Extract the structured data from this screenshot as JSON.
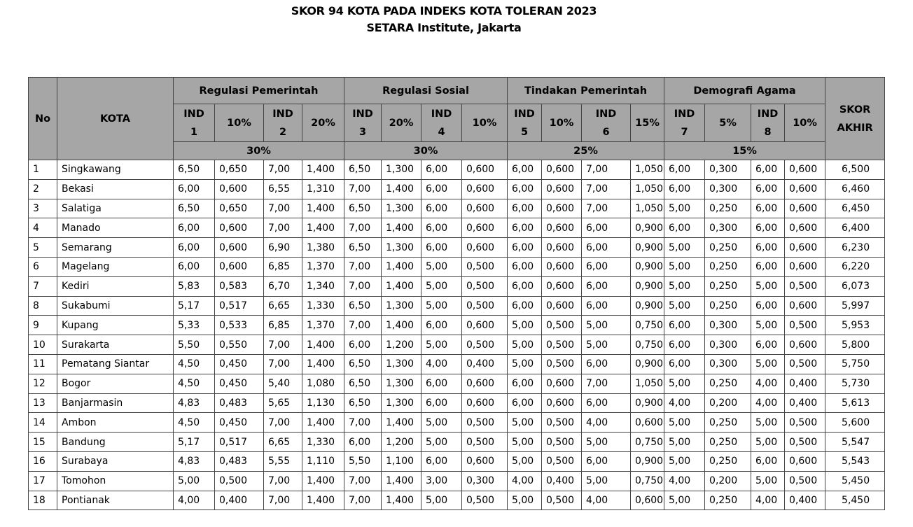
{
  "header": {
    "title": "SKOR 94 KOTA PADA INDEKS KOTA TOLERAN 2023",
    "subtitle": "SETARA Institute, Jakarta"
  },
  "table": {
    "col_no": "No",
    "col_kota": "KOTA",
    "col_skor": "SKOR AKHIR",
    "groups": [
      {
        "label": "Regulasi Pemerintah",
        "weight": "30%",
        "sub": [
          {
            "ind": "IND",
            "num": "1",
            "pct": "10%"
          },
          {
            "ind": "IND",
            "num": "2",
            "pct": "20%"
          }
        ]
      },
      {
        "label": "Regulasi Sosial",
        "weight": "30%",
        "sub": [
          {
            "ind": "IND",
            "num": "3",
            "pct": "20%"
          },
          {
            "ind": "IND",
            "num": "4",
            "pct": "10%"
          }
        ]
      },
      {
        "label": "Tindakan Pemerintah",
        "weight": "25%",
        "sub": [
          {
            "ind": "IND",
            "num": "5",
            "pct": "10%"
          },
          {
            "ind": "IND",
            "num": "6",
            "pct": "15%"
          }
        ]
      },
      {
        "label": "Demografi Agama",
        "weight": "15%",
        "sub": [
          {
            "ind": "IND",
            "num": "7",
            "pct": "5%"
          },
          {
            "ind": "IND",
            "num": "8",
            "pct": "10%"
          }
        ]
      }
    ],
    "rows": [
      [
        "1",
        "Singkawang",
        "6,50",
        "0,650",
        "7,00",
        "1,400",
        "6,50",
        "1,300",
        "6,00",
        "0,600",
        "6,00",
        "0,600",
        "7,00",
        "1,050",
        "6,00",
        "0,300",
        "6,00",
        "0,600",
        "6,500"
      ],
      [
        "2",
        "Bekasi",
        "6,00",
        "0,600",
        "6,55",
        "1,310",
        "7,00",
        "1,400",
        "6,00",
        "0,600",
        "6,00",
        "0,600",
        "7,00",
        "1,050",
        "6,00",
        "0,300",
        "6,00",
        "0,600",
        "6,460"
      ],
      [
        "3",
        "Salatiga",
        "6,50",
        "0,650",
        "7,00",
        "1,400",
        "6,50",
        "1,300",
        "6,00",
        "0,600",
        "6,00",
        "0,600",
        "7,00",
        "1,050",
        "5,00",
        "0,250",
        "6,00",
        "0,600",
        "6,450"
      ],
      [
        "4",
        "Manado",
        "6,00",
        "0,600",
        "7,00",
        "1,400",
        "7,00",
        "1,400",
        "6,00",
        "0,600",
        "6,00",
        "0,600",
        "6,00",
        "0,900",
        "6,00",
        "0,300",
        "6,00",
        "0,600",
        "6,400"
      ],
      [
        "5",
        "Semarang",
        "6,00",
        "0,600",
        "6,90",
        "1,380",
        "6,50",
        "1,300",
        "6,00",
        "0,600",
        "6,00",
        "0,600",
        "6,00",
        "0,900",
        "5,00",
        "0,250",
        "6,00",
        "0,600",
        "6,230"
      ],
      [
        "6",
        "Magelang",
        "6,00",
        "0,600",
        "6,85",
        "1,370",
        "7,00",
        "1,400",
        "5,00",
        "0,500",
        "6,00",
        "0,600",
        "6,00",
        "0,900",
        "5,00",
        "0,250",
        "6,00",
        "0,600",
        "6,220"
      ],
      [
        "7",
        "Kediri",
        "5,83",
        "0,583",
        "6,70",
        "1,340",
        "7,00",
        "1,400",
        "5,00",
        "0,500",
        "6,00",
        "0,600",
        "6,00",
        "0,900",
        "5,00",
        "0,250",
        "5,00",
        "0,500",
        "6,073"
      ],
      [
        "8",
        "Sukabumi",
        "5,17",
        "0,517",
        "6,65",
        "1,330",
        "6,50",
        "1,300",
        "5,00",
        "0,500",
        "6,00",
        "0,600",
        "6,00",
        "0,900",
        "5,00",
        "0,250",
        "6,00",
        "0,600",
        "5,997"
      ],
      [
        "9",
        "Kupang",
        "5,33",
        "0,533",
        "6,85",
        "1,370",
        "7,00",
        "1,400",
        "6,00",
        "0,600",
        "5,00",
        "0,500",
        "5,00",
        "0,750",
        "6,00",
        "0,300",
        "5,00",
        "0,500",
        "5,953"
      ],
      [
        "10",
        "Surakarta",
        "5,50",
        "0,550",
        "7,00",
        "1,400",
        "6,00",
        "1,200",
        "5,00",
        "0,500",
        "5,00",
        "0,500",
        "5,00",
        "0,750",
        "6,00",
        "0,300",
        "6,00",
        "0,600",
        "5,800"
      ],
      [
        "11",
        "Pematang Siantar",
        "4,50",
        "0,450",
        "7,00",
        "1,400",
        "6,50",
        "1,300",
        "4,00",
        "0,400",
        "5,00",
        "0,500",
        "6,00",
        "0,900",
        "6,00",
        "0,300",
        "5,00",
        "0,500",
        "5,750"
      ],
      [
        "12",
        "Bogor",
        "4,50",
        "0,450",
        "5,40",
        "1,080",
        "6,50",
        "1,300",
        "6,00",
        "0,600",
        "6,00",
        "0,600",
        "7,00",
        "1,050",
        "5,00",
        "0,250",
        "4,00",
        "0,400",
        "5,730"
      ],
      [
        "13",
        "Banjarmasin",
        "4,83",
        "0,483",
        "5,65",
        "1,130",
        "6,50",
        "1,300",
        "6,00",
        "0,600",
        "6,00",
        "0,600",
        "6,00",
        "0,900",
        "4,00",
        "0,200",
        "4,00",
        "0,400",
        "5,613"
      ],
      [
        "14",
        "Ambon",
        "4,50",
        "0,450",
        "7,00",
        "1,400",
        "7,00",
        "1,400",
        "5,00",
        "0,500",
        "5,00",
        "0,500",
        "4,00",
        "0,600",
        "5,00",
        "0,250",
        "5,00",
        "0,500",
        "5,600"
      ],
      [
        "15",
        "Bandung",
        "5,17",
        "0,517",
        "6,65",
        "1,330",
        "6,00",
        "1,200",
        "5,00",
        "0,500",
        "5,00",
        "0,500",
        "5,00",
        "0,750",
        "5,00",
        "0,250",
        "5,00",
        "0,500",
        "5,547"
      ],
      [
        "16",
        "Surabaya",
        "4,83",
        "0,483",
        "5,55",
        "1,110",
        "5,50",
        "1,100",
        "6,00",
        "0,600",
        "5,00",
        "0,500",
        "6,00",
        "0,900",
        "5,00",
        "0,250",
        "6,00",
        "0,600",
        "5,543"
      ],
      [
        "17",
        "Tomohon",
        "5,00",
        "0,500",
        "7,00",
        "1,400",
        "7,00",
        "1,400",
        "3,00",
        "0,300",
        "4,00",
        "0,400",
        "5,00",
        "0,750",
        "4,00",
        "0,200",
        "5,00",
        "0,500",
        "5,450"
      ],
      [
        "18",
        "Pontianak",
        "4,00",
        "0,400",
        "7,00",
        "1,400",
        "7,00",
        "1,400",
        "5,00",
        "0,500",
        "5,00",
        "0,500",
        "4,00",
        "0,600",
        "5,00",
        "0,250",
        "4,00",
        "0,400",
        "5,450"
      ]
    ]
  }
}
